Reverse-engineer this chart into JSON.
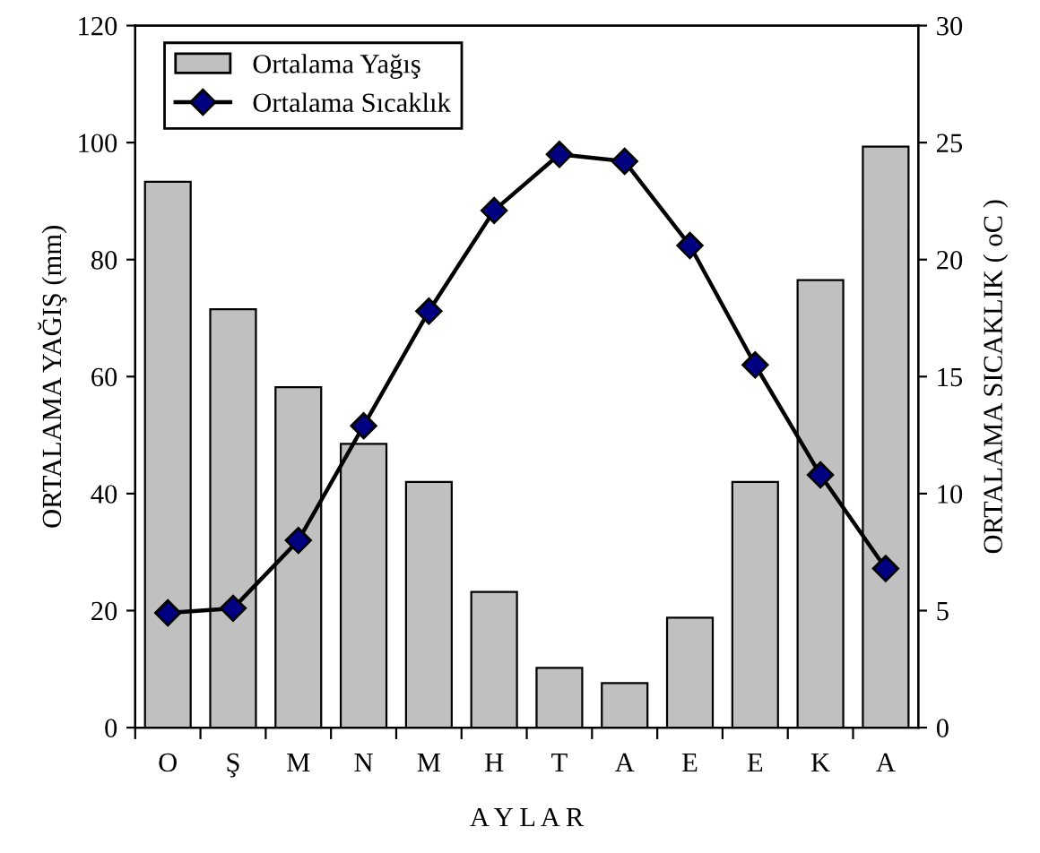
{
  "chart_data": {
    "type": "bar",
    "categories": [
      "O",
      "Ş",
      "M",
      "N",
      "M",
      "H",
      "T",
      "A",
      "E",
      "E",
      "K",
      "A"
    ],
    "xlabel": "A Y L A R",
    "ylabel": "ORTALAMA YAĞIŞ (mm)",
    "y2label": "ORTALAMA SICAKLIK ( oC )",
    "series": [
      {
        "name": "Ortalama Yağış",
        "color": "#c0c0c0",
        "values": [
          93.3,
          71.5,
          58.2,
          48.5,
          42,
          23.2,
          10.2,
          7.6,
          18.8,
          42,
          76.5,
          99.3
        ]
      },
      {
        "name": "Ortalama Sıcaklık",
        "type": "line",
        "axis": "y2",
        "color": "#000080",
        "marker": "diamond",
        "values": [
          4.9,
          5.1,
          8.0,
          12.9,
          17.8,
          22.1,
          24.5,
          24.2,
          20.6,
          15.5,
          10.8,
          6.8
        ]
      }
    ],
    "ylim": [
      0,
      120
    ],
    "yticks": [
      0,
      20,
      40,
      60,
      80,
      100,
      120
    ],
    "y2lim": [
      0,
      30
    ],
    "y2ticks": [
      0,
      5,
      10,
      15,
      20,
      25,
      30
    ],
    "grid": false,
    "legend": "top left"
  }
}
